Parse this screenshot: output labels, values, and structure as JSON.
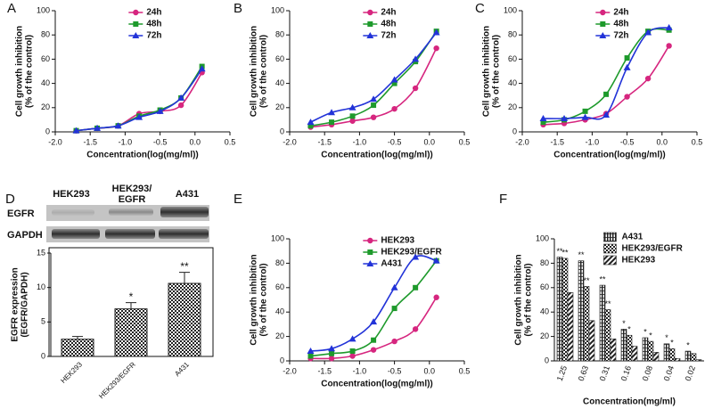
{
  "chart_data": [
    {
      "type": "line",
      "panel": "A",
      "xlabel": "Concentration(log(mg/ml))",
      "ylabel": [
        "Cell growth inhibition",
        "(% of the control)"
      ],
      "x": [
        -1.7,
        -1.4,
        -1.1,
        -0.8,
        -0.5,
        -0.2,
        0.1
      ],
      "series": [
        {
          "name": "24h",
          "color": "#d6267f",
          "marker": "circle",
          "values": [
            1,
            3,
            5,
            15,
            17,
            22,
            49
          ]
        },
        {
          "name": "48h",
          "color": "#1e9a2c",
          "marker": "square",
          "values": [
            1,
            3,
            5,
            13,
            18,
            28,
            54
          ]
        },
        {
          "name": "72h",
          "color": "#2233d8",
          "marker": "triangle",
          "values": [
            1,
            3,
            5,
            12,
            17,
            28,
            52
          ]
        }
      ],
      "xlim": [
        -2,
        0.5
      ],
      "xticks": [
        {
          "value": -2,
          "label": "-2.0"
        },
        -1.5,
        {
          "value": -1,
          "label": "-1.0"
        },
        -0.5,
        {
          "value": 0,
          "label": "0.0"
        },
        0.5
      ],
      "ylim": [
        0,
        100
      ],
      "yticks": [
        0,
        20,
        40,
        60,
        80,
        100
      ],
      "legend": "upper center"
    },
    {
      "type": "line",
      "panel": "B",
      "xlabel": "Concentration(log(mg/ml))",
      "ylabel": [
        "Cell growth inhibition",
        "(% of the control)"
      ],
      "x": [
        -1.7,
        -1.4,
        -1.1,
        -0.8,
        -0.5,
        -0.2,
        0.1
      ],
      "series": [
        {
          "name": "24h",
          "color": "#d6267f",
          "marker": "circle",
          "values": [
            4,
            6,
            9,
            12,
            19,
            36,
            69
          ]
        },
        {
          "name": "48h",
          "color": "#1e9a2c",
          "marker": "square",
          "values": [
            5,
            8,
            13,
            22,
            40,
            58,
            83
          ]
        },
        {
          "name": "72h",
          "color": "#2233d8",
          "marker": "triangle",
          "values": [
            8,
            16,
            20,
            27,
            43,
            60,
            82
          ]
        }
      ],
      "xlim": [
        -2,
        0.5
      ],
      "xticks": [
        {
          "value": -2,
          "label": "-2.0"
        },
        -1.5,
        {
          "value": -1,
          "label": "-1.0"
        },
        -0.5,
        {
          "value": 0,
          "label": "0.0"
        },
        0.5
      ],
      "ylim": [
        0,
        100
      ],
      "yticks": [
        0,
        20,
        40,
        60,
        80,
        100
      ],
      "legend": "upper center"
    },
    {
      "type": "line",
      "panel": "C",
      "xlabel": "Concentration(log(mg/ml))",
      "ylabel": [
        "Cell growth inhibition",
        "(% of the control)"
      ],
      "x": [
        -1.7,
        -1.4,
        -1.1,
        -0.8,
        -0.5,
        -0.2,
        0.1
      ],
      "series": [
        {
          "name": "24h",
          "color": "#d6267f",
          "marker": "circle",
          "values": [
            6,
            7,
            10,
            15,
            29,
            44,
            71
          ]
        },
        {
          "name": "48h",
          "color": "#1e9a2c",
          "marker": "square",
          "values": [
            8,
            10,
            17,
            31,
            61,
            83,
            84
          ]
        },
        {
          "name": "72h",
          "color": "#2233d8",
          "marker": "triangle",
          "values": [
            11,
            11,
            12,
            14,
            53,
            82,
            86
          ]
        }
      ],
      "xlim": [
        -2,
        0.5
      ],
      "xticks": [
        {
          "value": -2,
          "label": "-2.0"
        },
        -1.5,
        {
          "value": -1,
          "label": "-1.0"
        },
        -0.5,
        {
          "value": 0,
          "label": "0.0"
        },
        0.5
      ],
      "ylim": [
        0,
        100
      ],
      "yticks": [
        0,
        20,
        40,
        60,
        80,
        100
      ],
      "legend": "upper center"
    },
    {
      "type": "bar",
      "panel": "D",
      "blot_lanes": [
        [
          "HEK293"
        ],
        [
          "HEK293/",
          "EGFR"
        ],
        [
          "A431"
        ]
      ],
      "blot_rows": [
        "EGFR",
        "GAPDH"
      ],
      "ylabel": [
        "EGFR expression",
        "(EGFR/GAPDH)"
      ],
      "categories": [
        "HEK293",
        "HEK293/EGFR",
        "A431"
      ],
      "values": [
        2.5,
        6.9,
        10.6
      ],
      "errors": [
        0.4,
        0.9,
        1.6
      ],
      "annotations": [
        null,
        "*",
        "**"
      ],
      "pattern": "checker",
      "ylim": [
        0,
        15
      ],
      "yticks": [
        0,
        5,
        10,
        15
      ]
    },
    {
      "type": "line",
      "panel": "E",
      "xlabel": "Concentration(log(mg/ml))",
      "ylabel": [
        "Cell growth inhibition",
        "(% of the control)"
      ],
      "x": [
        -1.7,
        -1.4,
        -1.1,
        -0.8,
        -0.5,
        -0.2,
        0.1
      ],
      "series": [
        {
          "name": "HEK293",
          "color": "#d6267f",
          "marker": "circle",
          "values": [
            2,
            2,
            4,
            9,
            16,
            26,
            52
          ]
        },
        {
          "name": "HEK293/EGFR",
          "color": "#1e9a2c",
          "marker": "square",
          "values": [
            4,
            6,
            8,
            17,
            43,
            60,
            82
          ]
        },
        {
          "name": "A431",
          "color": "#2233d8",
          "marker": "triangle",
          "values": [
            8,
            10,
            18,
            32,
            60,
            85,
            82
          ]
        }
      ],
      "xlim": [
        -2,
        0.5
      ],
      "xticks": [
        {
          "value": -2,
          "label": "-2.0"
        },
        -1.5,
        {
          "value": -1,
          "label": "-1.0"
        },
        -0.5,
        {
          "value": 0,
          "label": "0.0"
        },
        0.5
      ],
      "ylim": [
        0,
        100
      ],
      "yticks": [
        0,
        20,
        40,
        60,
        80,
        100
      ],
      "legend": "upper center"
    },
    {
      "type": "grouped-bar",
      "panel": "F",
      "xlabel": "Concentration(mg/ml)",
      "ylabel": [
        "Cell growth inhibition",
        "(% of the control)"
      ],
      "categories": [
        "1.25",
        "0.63",
        "0.31",
        "0.16",
        "0.08",
        "0.04",
        "0.02"
      ],
      "series": [
        {
          "name": "A431",
          "pattern": "vertical",
          "values": [
            85,
            82,
            62,
            26,
            19,
            14,
            8
          ],
          "annotations": [
            "**",
            "**",
            "**",
            "*",
            "*",
            "*",
            "*"
          ]
        },
        {
          "name": "HEK293/EGFR",
          "pattern": "checker",
          "values": [
            84,
            61,
            42,
            21,
            16,
            10,
            6
          ],
          "annotations": [
            "**",
            "**",
            "**",
            "*",
            "*",
            "*",
            null
          ]
        },
        {
          "name": "HEK293",
          "pattern": "diagonal",
          "values": [
            56,
            33,
            18,
            12,
            7,
            2,
            1
          ]
        }
      ],
      "ylim": [
        0,
        100
      ],
      "yticks": [
        0,
        20,
        40,
        60,
        80,
        100
      ],
      "legend": "upper right"
    }
  ]
}
